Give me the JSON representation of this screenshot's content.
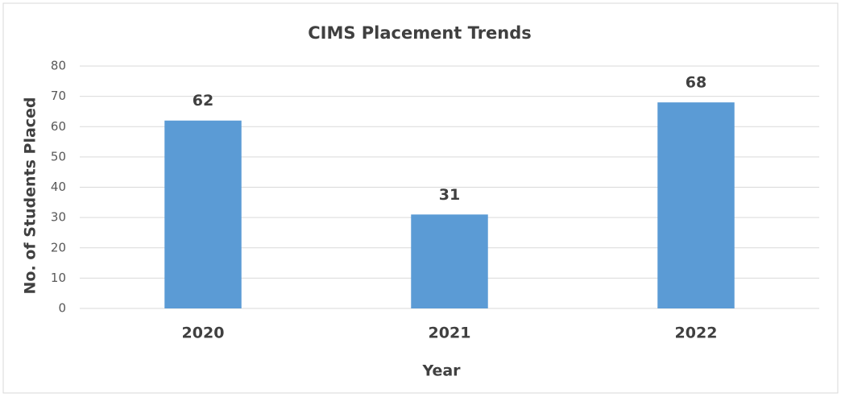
{
  "chart_data": {
    "type": "bar",
    "title": "CIMS Placement Trends",
    "x_label": "Year",
    "y_label": "No. of Students Placed",
    "categories": [
      "2020",
      "2021",
      "2022"
    ],
    "values": [
      62,
      31,
      68
    ],
    "color": "#5b9bd5",
    "ylim": [
      0,
      80
    ],
    "yticks": [
      0,
      10,
      20,
      30,
      40,
      50,
      60,
      70,
      80
    ],
    "grid": true
  }
}
